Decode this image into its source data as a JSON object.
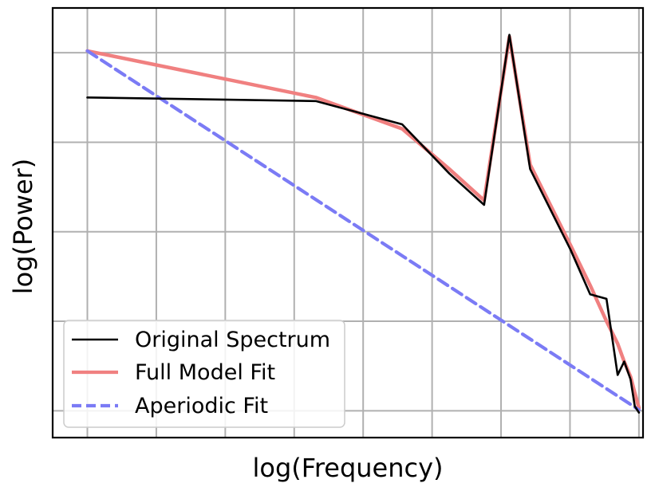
{
  "chart_data": {
    "type": "line",
    "xlabel": "log(Frequency)",
    "ylabel": "log(Power)",
    "x_scale": "log",
    "xlim": [
      0.27,
      1.62
    ],
    "ylim": [
      -3.3,
      1.5
    ],
    "grid": true,
    "tick_labels_visible": false,
    "legend_position": "lower-left",
    "series": [
      {
        "name": "Original Spectrum",
        "color": "#000000",
        "style": "solid",
        "x": [
          0.3,
          0.6,
          0.78,
          0.9,
          1.0,
          1.08,
          1.15,
          1.3,
          1.38,
          1.45,
          1.5,
          1.53,
          1.56,
          1.58,
          1.6
        ],
        "y": [
          0.5,
          0.46,
          0.2,
          -0.35,
          -0.7,
          1.2,
          -0.3,
          -1.2,
          -1.7,
          -1.75,
          -2.6,
          -2.45,
          -2.65,
          -2.95,
          -3.02
        ]
      },
      {
        "name": "Full Model Fit",
        "color": "#f08080",
        "style": "solid",
        "x": [
          0.3,
          0.6,
          0.78,
          0.9,
          1.0,
          1.08,
          1.15,
          1.3,
          1.38,
          1.45,
          1.5,
          1.53,
          1.56,
          1.58,
          1.6
        ],
        "y": [
          1.02,
          0.5,
          0.15,
          -0.3,
          -0.65,
          1.18,
          -0.25,
          -1.15,
          -1.6,
          -2.0,
          -2.25,
          -2.45,
          -2.62,
          -2.8,
          -2.97
        ]
      },
      {
        "name": "Aperiodic Fit",
        "color": "#7b7bf5",
        "style": "dashed",
        "x": [
          0.3,
          1.6
        ],
        "y": [
          1.02,
          -2.99
        ]
      }
    ]
  }
}
